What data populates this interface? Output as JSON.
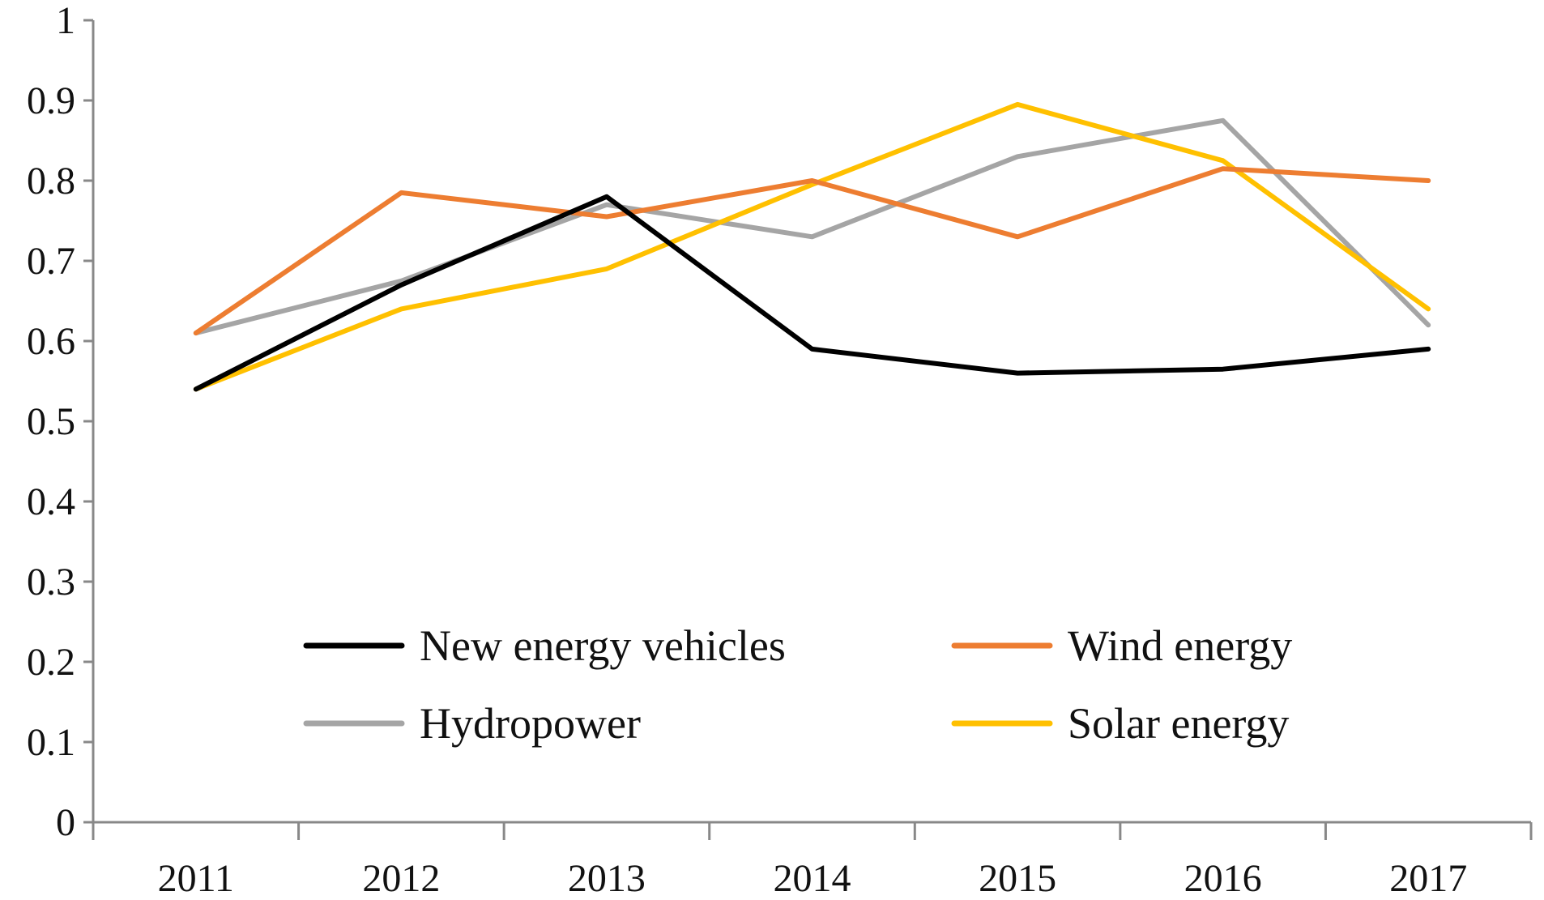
{
  "chart_data": {
    "type": "line",
    "title": "",
    "xlabel": "",
    "ylabel": "",
    "categories": [
      "2011",
      "2012",
      "2013",
      "2014",
      "2015",
      "2016",
      "2017"
    ],
    "ylim": [
      0,
      1
    ],
    "yticks": [
      "0",
      "0.1",
      "0.2",
      "0.3",
      "0.4",
      "0.5",
      "0.6",
      "0.7",
      "0.8",
      "0.9",
      "1"
    ],
    "grid": false,
    "legend_position": "bottom-center inside plot",
    "series": [
      {
        "name": "New energy vehicles",
        "color": "#000000",
        "values": [
          0.54,
          0.67,
          0.78,
          0.59,
          0.56,
          0.565,
          0.59
        ]
      },
      {
        "name": "Wind energy",
        "color": "#ED7D31",
        "values": [
          0.61,
          0.785,
          0.755,
          0.8,
          0.73,
          0.815,
          0.8
        ]
      },
      {
        "name": "Hydropower",
        "color": "#A5A5A5",
        "values": [
          0.61,
          0.675,
          0.77,
          0.73,
          0.83,
          0.875,
          0.62
        ]
      },
      {
        "name": "Solar energy",
        "color": "#FFC000",
        "values": [
          0.54,
          0.64,
          0.69,
          0.795,
          0.895,
          0.825,
          0.64
        ]
      }
    ]
  }
}
